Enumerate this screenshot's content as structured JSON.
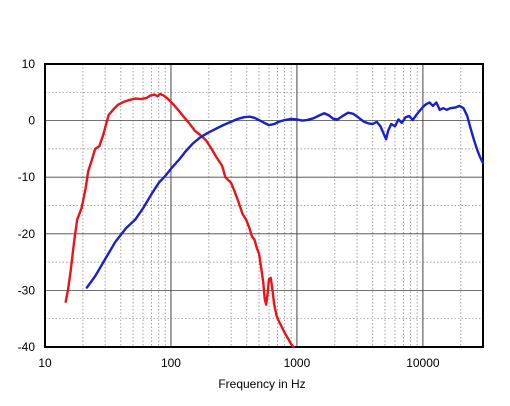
{
  "chart_data": {
    "type": "line",
    "title": "",
    "xlabel": "Frequency in Hz",
    "ylabel": "",
    "x_scale": "log",
    "xlim": [
      10,
      30000
    ],
    "ylim": [
      -40,
      10
    ],
    "x_ticks": [
      {
        "value": 10,
        "label": "10"
      },
      {
        "value": 100,
        "label": "100"
      },
      {
        "value": 1000,
        "label": "1000"
      },
      {
        "value": 10000,
        "label": "10000"
      }
    ],
    "y_ticks": [
      {
        "value": 10,
        "label": "10"
      },
      {
        "value": 0,
        "label": "0"
      },
      {
        "value": -10,
        "label": "-10"
      },
      {
        "value": -20,
        "label": "-20"
      },
      {
        "value": -30,
        "label": "-30"
      },
      {
        "value": -40,
        "label": "-40"
      }
    ],
    "grid": true,
    "legend": "none",
    "series": [
      {
        "color": "#e8141c",
        "points": [
          [
            14.6,
            -32
          ],
          [
            15.2,
            -30
          ],
          [
            16,
            -26.5
          ],
          [
            17,
            -21.5
          ],
          [
            18,
            -17.5
          ],
          [
            19.5,
            -15.5
          ],
          [
            21,
            -12
          ],
          [
            22,
            -9
          ],
          [
            23.5,
            -7
          ],
          [
            25,
            -5
          ],
          [
            27,
            -4.5
          ],
          [
            29,
            -2.5
          ],
          [
            32,
            1
          ],
          [
            35,
            2
          ],
          [
            38,
            2.8
          ],
          [
            42,
            3.3
          ],
          [
            46,
            3.6
          ],
          [
            52,
            3.9
          ],
          [
            58,
            3.8
          ],
          [
            64,
            4
          ],
          [
            68,
            4.4
          ],
          [
            74,
            4.6
          ],
          [
            78,
            4.3
          ],
          [
            82,
            4.7
          ],
          [
            88,
            4.4
          ],
          [
            95,
            3.8
          ],
          [
            105,
            2.8
          ],
          [
            115,
            1.8
          ],
          [
            125,
            0.8
          ],
          [
            140,
            -0.5
          ],
          [
            155,
            -1.8
          ],
          [
            170,
            -2.5
          ],
          [
            190,
            -3.5
          ],
          [
            210,
            -5
          ],
          [
            230,
            -6.5
          ],
          [
            255,
            -8
          ],
          [
            270,
            -10
          ],
          [
            300,
            -11
          ],
          [
            320,
            -12.5
          ],
          [
            345,
            -14.5
          ],
          [
            370,
            -16.5
          ],
          [
            395,
            -17.5
          ],
          [
            420,
            -19
          ],
          [
            440,
            -20.5
          ],
          [
            460,
            -21
          ],
          [
            480,
            -22.5
          ],
          [
            500,
            -23.5
          ],
          [
            520,
            -26
          ],
          [
            540,
            -28.5
          ],
          [
            555,
            -31.5
          ],
          [
            570,
            -32.5
          ],
          [
            585,
            -30.5
          ],
          [
            600,
            -28
          ],
          [
            620,
            -27.8
          ],
          [
            640,
            -30
          ],
          [
            660,
            -32.5
          ],
          [
            690,
            -34.5
          ],
          [
            720,
            -35.5
          ],
          [
            760,
            -36.5
          ],
          [
            800,
            -37.5
          ],
          [
            850,
            -38.5
          ],
          [
            900,
            -39.5
          ],
          [
            940,
            -40
          ]
        ]
      },
      {
        "color": "#1a1fcc",
        "points": [
          [
            21.5,
            -29.5
          ],
          [
            25,
            -27.5
          ],
          [
            30,
            -24.5
          ],
          [
            36,
            -21.5
          ],
          [
            44,
            -19
          ],
          [
            52,
            -17.5
          ],
          [
            60,
            -15.5
          ],
          [
            70,
            -13
          ],
          [
            80,
            -11
          ],
          [
            90,
            -9.8
          ],
          [
            100,
            -8.5
          ],
          [
            115,
            -7
          ],
          [
            130,
            -5.5
          ],
          [
            150,
            -4
          ],
          [
            170,
            -3
          ],
          [
            195,
            -2.2
          ],
          [
            225,
            -1.5
          ],
          [
            260,
            -0.8
          ],
          [
            300,
            -0.2
          ],
          [
            340,
            0.3
          ],
          [
            380,
            0.6
          ],
          [
            420,
            0.7
          ],
          [
            460,
            0.5
          ],
          [
            500,
            0.1
          ],
          [
            550,
            -0.4
          ],
          [
            600,
            -0.8
          ],
          [
            660,
            -0.6
          ],
          [
            720,
            -0.2
          ],
          [
            800,
            0.1
          ],
          [
            900,
            0.3
          ],
          [
            1000,
            0.2
          ],
          [
            1100,
            0
          ],
          [
            1200,
            0.1
          ],
          [
            1350,
            0.4
          ],
          [
            1500,
            0.9
          ],
          [
            1650,
            1.3
          ],
          [
            1800,
            0.9
          ],
          [
            1950,
            0.3
          ],
          [
            2100,
            0.2
          ],
          [
            2300,
            0.8
          ],
          [
            2550,
            1.4
          ],
          [
            2800,
            1.2
          ],
          [
            3100,
            0.5
          ],
          [
            3400,
            -0.2
          ],
          [
            3700,
            -0.5
          ],
          [
            4000,
            -0.6
          ],
          [
            4300,
            -0.2
          ],
          [
            4600,
            -1
          ],
          [
            4900,
            -2.4
          ],
          [
            5100,
            -3.3
          ],
          [
            5300,
            -1.8
          ],
          [
            5600,
            -0.6
          ],
          [
            6000,
            -1
          ],
          [
            6400,
            0.2
          ],
          [
            6800,
            -0.4
          ],
          [
            7300,
            0.6
          ],
          [
            7800,
            0.8
          ],
          [
            8300,
            0.1
          ],
          [
            8800,
            0.9
          ],
          [
            9400,
            1.7
          ],
          [
            10000,
            2.4
          ],
          [
            10600,
            2.9
          ],
          [
            11300,
            3.2
          ],
          [
            12000,
            2.6
          ],
          [
            12800,
            3.2
          ],
          [
            13600,
            1.9
          ],
          [
            14500,
            2.2
          ],
          [
            15500,
            1.9
          ],
          [
            16500,
            2.2
          ],
          [
            18000,
            2.3
          ],
          [
            19500,
            2.6
          ],
          [
            21000,
            2.2
          ],
          [
            22500,
            0.8
          ],
          [
            24000,
            -1.5
          ],
          [
            25500,
            -3.5
          ],
          [
            27000,
            -5.2
          ],
          [
            28500,
            -6.5
          ],
          [
            30000,
            -7.5
          ]
        ]
      }
    ]
  }
}
